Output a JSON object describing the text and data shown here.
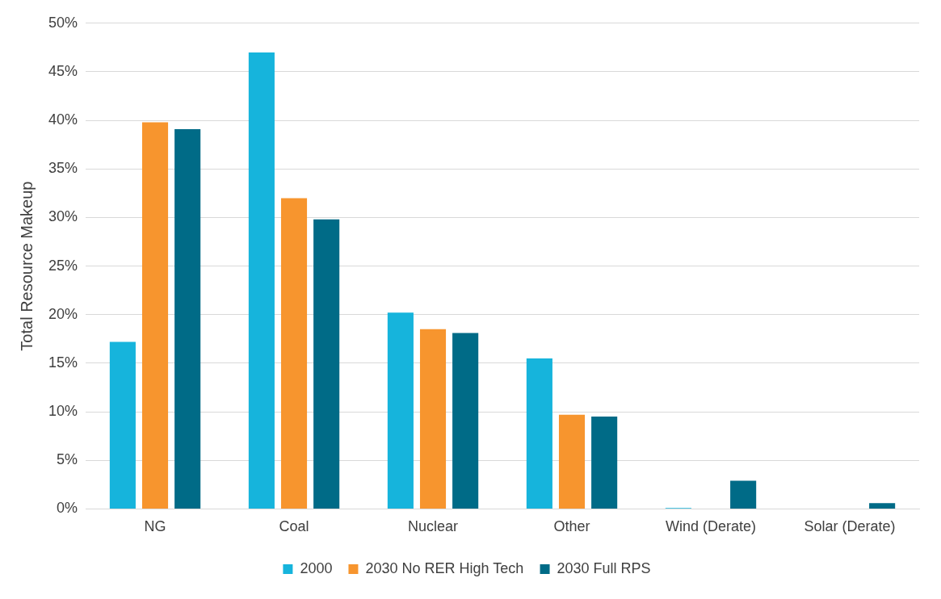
{
  "chart_data": {
    "type": "bar",
    "ylabel": "Total Resource Makeup",
    "categories": [
      "NG",
      "Coal",
      "Nuclear",
      "Other",
      "Wind (Derate)",
      "Solar (Derate)"
    ],
    "series": [
      {
        "name": "2000",
        "color": "#16b4dc",
        "values": [
          17.2,
          47.0,
          20.2,
          15.5,
          0.1,
          0
        ]
      },
      {
        "name": "2030 No RER High Tech",
        "color": "#f7952e",
        "values": [
          39.8,
          32.0,
          18.5,
          9.7,
          0,
          0
        ]
      },
      {
        "name": "2030 Full RPS",
        "color": "#006b87",
        "values": [
          39.1,
          29.8,
          18.1,
          9.5,
          2.9,
          0.6
        ]
      }
    ],
    "ylim": [
      0,
      50
    ],
    "yticks": [
      {
        "value": 0,
        "label": "0%"
      },
      {
        "value": 5,
        "label": "5%"
      },
      {
        "value": 10,
        "label": "10%"
      },
      {
        "value": 15,
        "label": "15%"
      },
      {
        "value": 20,
        "label": "20%"
      },
      {
        "value": 25,
        "label": "25%"
      },
      {
        "value": 30,
        "label": "30%"
      },
      {
        "value": 35,
        "label": "35%"
      },
      {
        "value": 40,
        "label": "40%"
      },
      {
        "value": 45,
        "label": "45%"
      },
      {
        "value": 50,
        "label": "50%"
      }
    ],
    "grid": "y",
    "legend": "bottom"
  }
}
